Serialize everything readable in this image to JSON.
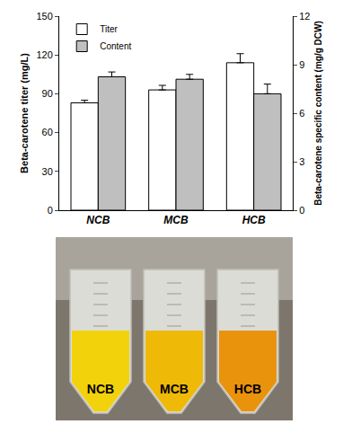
{
  "chart_data": {
    "type": "bar",
    "categories": [
      "NCB",
      "MCB",
      "HCB"
    ],
    "series": [
      {
        "name": "Titer",
        "color": "#ffffff",
        "values": [
          83,
          93,
          114
        ],
        "error": [
          2,
          3.5,
          7
        ]
      },
      {
        "name": "Content",
        "color": "#bfbfbf",
        "values": [
          8.25,
          8.1,
          7.2
        ],
        "error": [
          0.3,
          0.3,
          0.6
        ],
        "axis": "y2"
      }
    ],
    "ylabel": "Beta-carotene titer (mg/L)",
    "y2label": "Beta-carotene specific content (mg/g DCW)",
    "ylim": [
      0,
      150
    ],
    "yticks": [
      0,
      30,
      60,
      90,
      120,
      150
    ],
    "y2lim": [
      0,
      12
    ],
    "y2ticks": [
      0,
      3,
      6,
      9,
      12
    ],
    "legend": "upper left",
    "grid": false
  },
  "photo": {
    "labels": [
      "NCB",
      "MCB",
      "HCB"
    ]
  }
}
